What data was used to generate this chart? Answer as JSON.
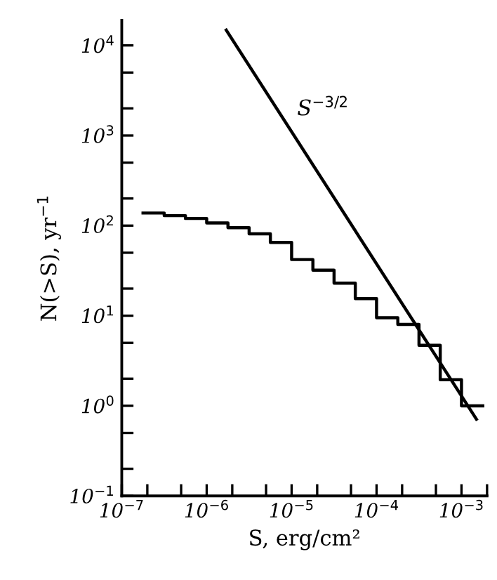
{
  "chart_data": {
    "type": "step",
    "xlabel": "S, erg/cm²",
    "ylabel": "N(>S), yr$^{−1}$",
    "log": "xy",
    "grid": false,
    "legend": false,
    "marker": "none",
    "line_style": "solid",
    "xlim": [
      1e-07,
      0.002
    ],
    "ylim": [
      0.1,
      19000
    ],
    "xticks": [
      {
        "value": 1e-07,
        "label": "10$^{−7}$"
      },
      {
        "value": 2e-07,
        "label": null
      },
      {
        "value": 5e-07,
        "label": null
      },
      {
        "value": 1e-06,
        "label": "10$^{−6}$"
      },
      {
        "value": 2e-06,
        "label": null
      },
      {
        "value": 5e-06,
        "label": null
      },
      {
        "value": 1e-05,
        "label": "10$^{−5}$"
      },
      {
        "value": 2e-05,
        "label": null
      },
      {
        "value": 5e-05,
        "label": null
      },
      {
        "value": 0.0001,
        "label": "10$^{−4}$"
      },
      {
        "value": 0.0002,
        "label": null
      },
      {
        "value": 0.0005,
        "label": null
      },
      {
        "value": 0.001,
        "label": "10$^{−3}$"
      },
      {
        "value": 0.002,
        "label": null
      }
    ],
    "yticks": [
      {
        "value": 0.1,
        "label": "10$^{−1}$"
      },
      {
        "value": 0.2,
        "label": null
      },
      {
        "value": 0.5,
        "label": null
      },
      {
        "value": 1,
        "label": "10$^{0}$"
      },
      {
        "value": 2,
        "label": null
      },
      {
        "value": 5,
        "label": null
      },
      {
        "value": 10,
        "label": "10$^{1}$"
      },
      {
        "value": 20,
        "label": null
      },
      {
        "value": 50,
        "label": null
      },
      {
        "value": 100,
        "label": "10$^{2}$"
      },
      {
        "value": 200,
        "label": null
      },
      {
        "value": 500,
        "label": null
      },
      {
        "value": 1000,
        "label": "10$^{3}$"
      },
      {
        "value": 2000,
        "label": null
      },
      {
        "value": 5000,
        "label": null
      },
      {
        "value": 10000,
        "label": "10$^{4}$"
      }
    ],
    "series": [
      {
        "color": "#000000",
        "x": [
          1.78e-07,
          3.16e-07,
          5.62e-07,
          1e-06,
          1.78e-06,
          3.16e-06,
          5.62e-06,
          1e-05,
          1.78e-05,
          3.16e-05,
          5.62e-05,
          0.0001,
          0.000178,
          0.000316,
          0.000562,
          0.001,
          0.00178
        ],
        "values": [
          138,
          129,
          120,
          107,
          95,
          81,
          65,
          42,
          32,
          23,
          15.5,
          9.5,
          8,
          4.7,
          1.95,
          1.0,
          1.0
        ]
      },
      {
        "type": "line",
        "color": "#000000",
        "x": [
          1.7e-06,
          0.0015
        ],
        "values": [
          14800,
          0.71
        ]
      }
    ],
    "annotations": [
      "S$^{−3/2}$"
    ]
  }
}
